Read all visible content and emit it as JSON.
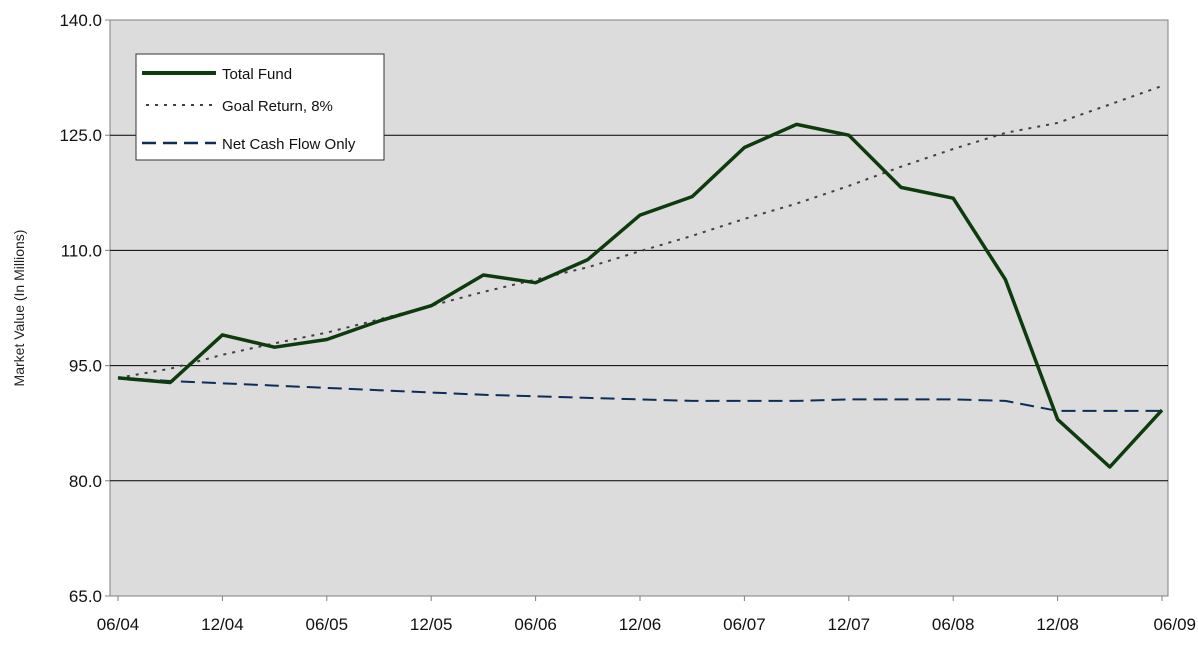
{
  "chart_data": {
    "type": "line",
    "title": "",
    "xlabel": "",
    "ylabel": "Market Value (In Millions)",
    "ylim": [
      65.0,
      140.0
    ],
    "y_ticks": [
      "140.0",
      "125.0",
      "110.0",
      "95.0",
      "80.0",
      "65.0"
    ],
    "y_tick_values": [
      140.0,
      125.0,
      110.0,
      95.0,
      80.0,
      65.0
    ],
    "x_ticks": [
      "06/04",
      "12/04",
      "06/05",
      "12/05",
      "06/06",
      "12/06",
      "06/07",
      "12/07",
      "06/08",
      "12/08",
      "06/09"
    ],
    "grid": "horizontal",
    "plot_background": "#dcdcdc",
    "legend_position": "top-left",
    "x": [
      "06/04",
      "09/04",
      "12/04",
      "03/05",
      "06/05",
      "09/05",
      "12/05",
      "03/06",
      "06/06",
      "09/06",
      "12/06",
      "03/07",
      "06/07",
      "09/07",
      "12/07",
      "03/08",
      "06/08",
      "09/08",
      "12/08",
      "03/09",
      "06/09"
    ],
    "series": [
      {
        "name": "Total Fund",
        "style": "solid",
        "color": "#0d3b0d",
        "values": [
          93.4,
          92.8,
          99.0,
          97.4,
          98.4,
          100.8,
          102.8,
          106.8,
          105.8,
          108.8,
          114.6,
          117.0,
          123.4,
          126.4,
          125.0,
          118.2,
          116.8,
          106.2,
          88.0,
          81.8,
          89.2
        ]
      },
      {
        "name": "Goal Return, 8%",
        "style": "dotted",
        "color": "#404040",
        "values": [
          93.4,
          94.6,
          96.4,
          97.9,
          99.3,
          101.0,
          102.8,
          104.6,
          106.2,
          107.8,
          109.9,
          111.9,
          114.1,
          116.1,
          118.4,
          120.9,
          123.2,
          125.3,
          126.6,
          129.0,
          131.4
        ]
      },
      {
        "name": "Net Cash Flow Only",
        "style": "dashed",
        "color": "#0d2c57",
        "values": [
          93.4,
          93.0,
          92.7,
          92.4,
          92.1,
          91.8,
          91.5,
          91.2,
          91.0,
          90.8,
          90.6,
          90.4,
          90.4,
          90.4,
          90.6,
          90.6,
          90.6,
          90.4,
          89.1,
          89.1,
          89.1
        ]
      }
    ]
  }
}
